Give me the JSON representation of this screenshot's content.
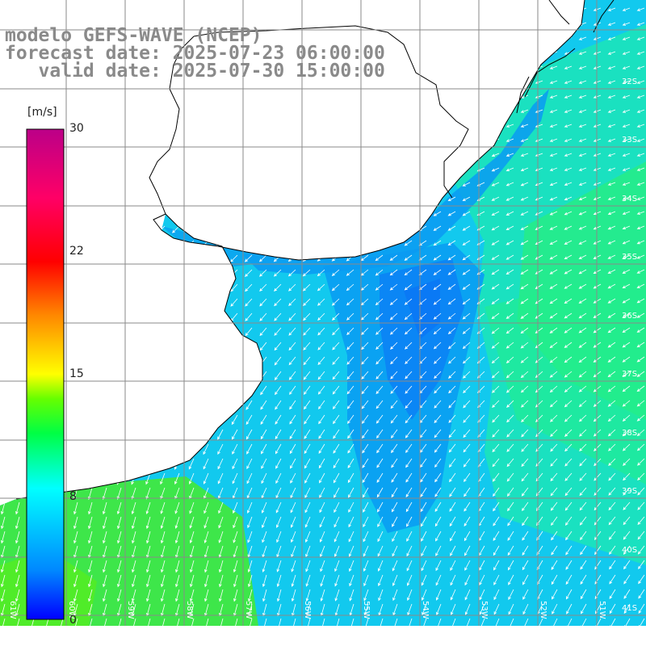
{
  "title": {
    "model": "modelo GEFS-WAVE (NCEP)",
    "forecast": "forecast date: 2025-07-23 06:00:00",
    "valid": "   valid date: 2025-07-30 15:00:00"
  },
  "colorbar": {
    "unit": "[m/s]",
    "min": 0,
    "max": 30,
    "ticks": [
      {
        "value": 30,
        "label": "30"
      },
      {
        "value": 22,
        "label": "22"
      },
      {
        "value": 15,
        "label": "15"
      },
      {
        "value": 8,
        "label": "8"
      },
      {
        "value": 0,
        "label": "0"
      }
    ],
    "stops": [
      "#0000ff",
      "#0088ff",
      "#00ffff",
      "#00ff44",
      "#66ff00",
      "#ffff00",
      "#ff8800",
      "#ff0000",
      "#ff0066",
      "#cc0088",
      "#aa0077"
    ]
  },
  "map": {
    "land_color": "#ffffff",
    "grid_color": "#8a8a8a",
    "coast_color": "#000000",
    "lat_labels": [
      "32S",
      "33S",
      "34S",
      "35S",
      "36S",
      "37S",
      "38S",
      "39S",
      "40S",
      "41S"
    ],
    "lon_labels": [
      "61W",
      "60W",
      "59W",
      "58W",
      "57W",
      "56W",
      "55W",
      "54W",
      "53W",
      "52W",
      "51W"
    ]
  }
}
